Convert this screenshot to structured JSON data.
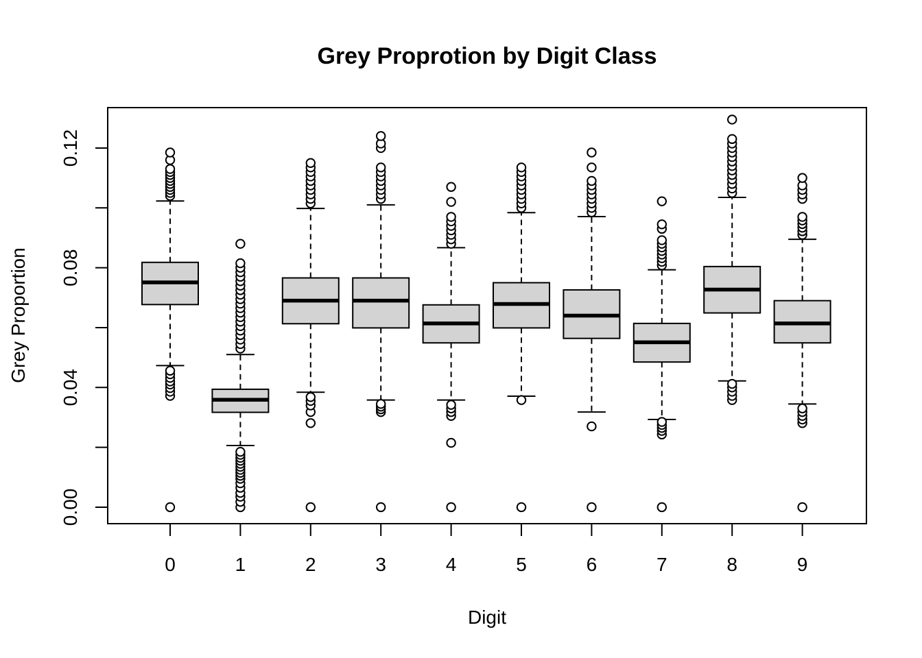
{
  "chart_data": {
    "type": "boxplot",
    "title": "Grey Proprotion by Digit Class",
    "xlabel": "Digit",
    "ylabel": "Grey Proportion",
    "ylim": [
      -0.0055,
      0.1335
    ],
    "yticks": [
      0.0,
      0.04,
      0.08,
      0.12
    ],
    "ytick_labels": [
      "0.00",
      "0.04",
      "0.08",
      "0.12"
    ],
    "yticks_minor": [
      0.02,
      0.06,
      0.1
    ],
    "grid": false,
    "legend": "none",
    "colors": {
      "box_fill": "#d3d3d3",
      "stroke": "#000000",
      "median": "#000000"
    },
    "categories": [
      "0",
      "1",
      "2",
      "3",
      "4",
      "5",
      "6",
      "7",
      "8",
      "9"
    ],
    "boxes": [
      {
        "category": "0",
        "whisker_low": 0.0473,
        "q1": 0.0677,
        "median": 0.0751,
        "q3": 0.0818,
        "whisker_high": 0.1023,
        "outliers": [
          0.0,
          0.0372,
          0.0386,
          0.0398,
          0.041,
          0.042,
          0.0432,
          0.0444,
          0.0456,
          0.104,
          0.105,
          0.106,
          0.107,
          0.108,
          0.109,
          0.11,
          0.111,
          0.112,
          0.113,
          0.116,
          0.1185
        ]
      },
      {
        "category": "1",
        "whisker_low": 0.0206,
        "q1": 0.0317,
        "median": 0.0359,
        "q3": 0.0394,
        "whisker_high": 0.051,
        "outliers": [
          0.0,
          0.0018,
          0.0035,
          0.0048,
          0.0065,
          0.008,
          0.0095,
          0.0105,
          0.0115,
          0.0125,
          0.0135,
          0.0145,
          0.0155,
          0.0165,
          0.0175,
          0.0185,
          0.053,
          0.0545,
          0.056,
          0.0575,
          0.059,
          0.0605,
          0.062,
          0.0635,
          0.065,
          0.0665,
          0.068,
          0.0695,
          0.071,
          0.0725,
          0.074,
          0.0755,
          0.077,
          0.0785,
          0.08,
          0.0815,
          0.088
        ]
      },
      {
        "category": "2",
        "whisker_low": 0.0384,
        "q1": 0.0613,
        "median": 0.069,
        "q3": 0.0766,
        "whisker_high": 0.0998,
        "outliers": [
          0.0,
          0.0281,
          0.0318,
          0.034,
          0.0355,
          0.0368,
          0.1015,
          0.103,
          0.1045,
          0.106,
          0.1075,
          0.109,
          0.1105,
          0.112,
          0.1135,
          0.115
        ]
      },
      {
        "category": "3",
        "whisker_low": 0.0358,
        "q1": 0.0599,
        "median": 0.069,
        "q3": 0.0766,
        "whisker_high": 0.101,
        "outliers": [
          0.0,
          0.0318,
          0.0327,
          0.0336,
          0.0345,
          0.103,
          0.1045,
          0.106,
          0.1075,
          0.109,
          0.1105,
          0.112,
          0.1135,
          0.12,
          0.1215,
          0.124
        ]
      },
      {
        "category": "4",
        "whisker_low": 0.0358,
        "q1": 0.0549,
        "median": 0.0614,
        "q3": 0.0676,
        "whisker_high": 0.0867,
        "outliers": [
          0.0,
          0.0215,
          0.0305,
          0.0318,
          0.033,
          0.0342,
          0.088,
          0.0895,
          0.091,
          0.0925,
          0.094,
          0.0955,
          0.097,
          0.102,
          0.107
        ]
      },
      {
        "category": "5",
        "whisker_low": 0.0371,
        "q1": 0.0599,
        "median": 0.0679,
        "q3": 0.075,
        "whisker_high": 0.0984,
        "outliers": [
          0.0,
          0.0358,
          0.1,
          0.1015,
          0.103,
          0.1045,
          0.106,
          0.1075,
          0.109,
          0.1105,
          0.112,
          0.1135
        ]
      },
      {
        "category": "6",
        "whisker_low": 0.0318,
        "q1": 0.0564,
        "median": 0.064,
        "q3": 0.0726,
        "whisker_high": 0.0971,
        "outliers": [
          0.0,
          0.027,
          0.0985,
          0.1,
          0.1015,
          0.103,
          0.1045,
          0.106,
          0.1075,
          0.109,
          0.1135,
          0.1185
        ]
      },
      {
        "category": "7",
        "whisker_low": 0.0293,
        "q1": 0.0485,
        "median": 0.0551,
        "q3": 0.0614,
        "whisker_high": 0.0793,
        "outliers": [
          0.0,
          0.0243,
          0.0255,
          0.0265,
          0.0275,
          0.0285,
          0.0808,
          0.082,
          0.0832,
          0.0844,
          0.0856,
          0.0868,
          0.088,
          0.0892,
          0.093,
          0.0945,
          0.1022
        ]
      },
      {
        "category": "8",
        "whisker_low": 0.0422,
        "q1": 0.0649,
        "median": 0.0727,
        "q3": 0.0804,
        "whisker_high": 0.1035,
        "outliers": [
          0.0358,
          0.0372,
          0.0386,
          0.04,
          0.0412,
          0.105,
          0.1065,
          0.108,
          0.1095,
          0.111,
          0.1125,
          0.114,
          0.1155,
          0.117,
          0.1185,
          0.12,
          0.1215,
          0.123,
          0.1295
        ]
      },
      {
        "category": "9",
        "whisker_low": 0.0345,
        "q1": 0.0549,
        "median": 0.0614,
        "q3": 0.069,
        "whisker_high": 0.0895,
        "outliers": [
          0.0,
          0.0281,
          0.0293,
          0.0305,
          0.0318,
          0.033,
          0.091,
          0.0922,
          0.0934,
          0.0946,
          0.0958,
          0.097,
          0.103,
          0.1045,
          0.106,
          0.1075,
          0.11
        ]
      }
    ]
  }
}
